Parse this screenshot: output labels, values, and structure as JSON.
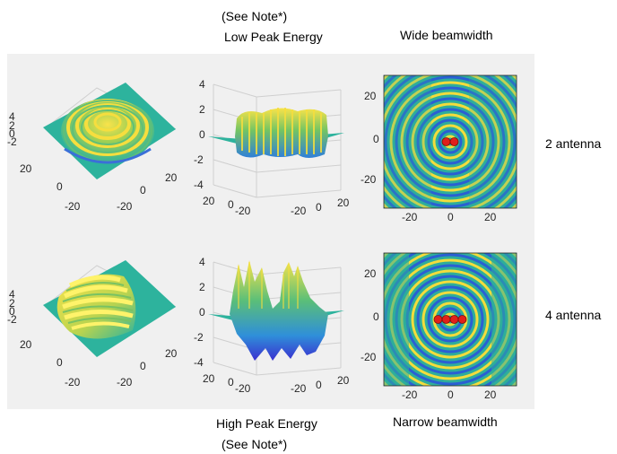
{
  "header": {
    "note_top": "(See Note*)",
    "low_peak": "Low Peak Energy",
    "wide_beam": "Wide beamwidth"
  },
  "footer": {
    "high_peak": "High Peak Energy",
    "note_bottom": "(See Note*)",
    "narrow_beam": "Narrow beamwidth"
  },
  "rows": [
    {
      "label": "2 antenna",
      "antenna_count": 2
    },
    {
      "label": "4 antenna",
      "antenna_count": 4
    }
  ],
  "ticks": {
    "z": [
      "4",
      "2",
      "0",
      "-2",
      "-4"
    ],
    "xy": [
      "20",
      "0",
      "-20"
    ],
    "map_y": [
      "20",
      "0",
      "-20"
    ],
    "map_x": [
      "-20",
      "0",
      "20"
    ]
  },
  "colors": {
    "surface_high": "#f9e34a",
    "surface_mid": "#2db39d",
    "surface_low": "#2f5bd9",
    "map_background": "#2eae9a",
    "antenna": "#e0201b"
  }
}
